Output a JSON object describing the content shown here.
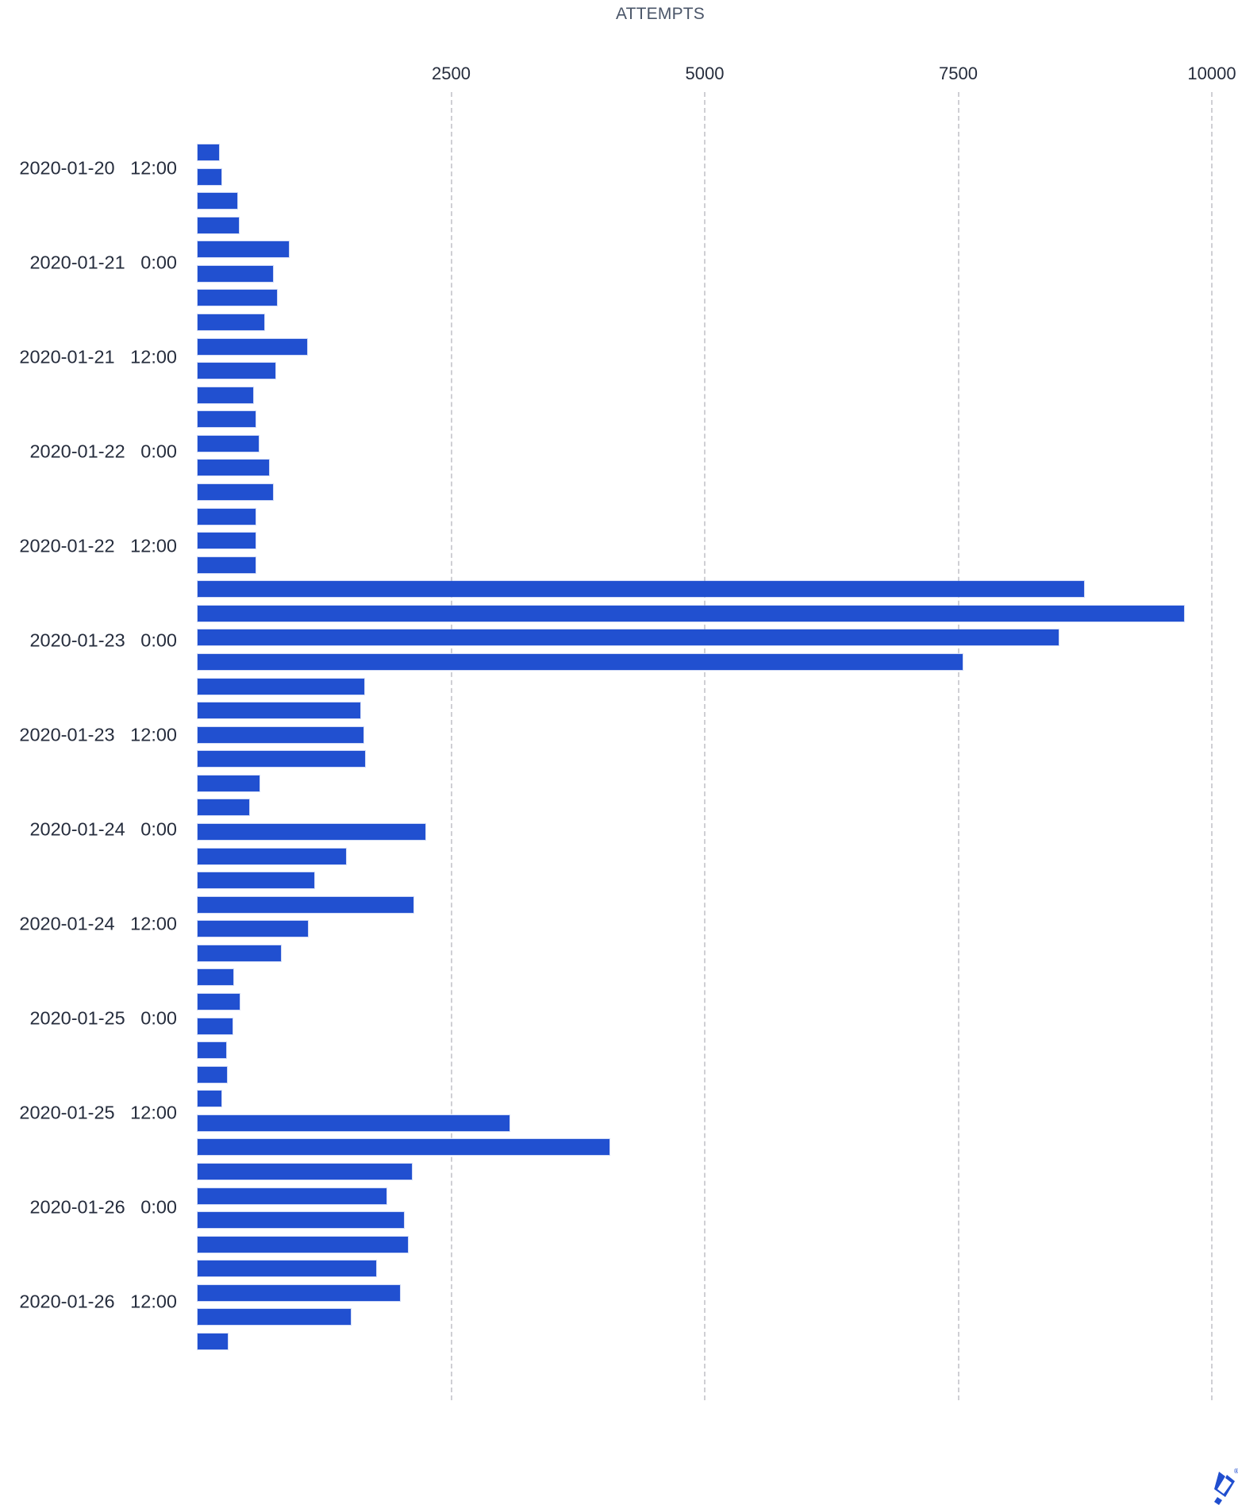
{
  "chart_data": {
    "type": "bar",
    "orientation": "horizontal",
    "title": "ATTEMPTS",
    "xlabel": "ATTEMPTS",
    "ylabel": "",
    "xlim": [
      0,
      10000
    ],
    "x_ticks": [
      2500,
      5000,
      7500,
      10000
    ],
    "x_tick_labels": [
      "2500",
      "5000",
      "7500",
      "10000"
    ],
    "grid": "vertical dashed",
    "y_tick_labels": [
      "2020-01-20   12:00",
      "2020-01-21   0:00",
      "2020-01-21   12:00",
      "2020-01-22   0:00",
      "2020-01-22   12:00",
      "2020-01-23   0:00",
      "2020-01-23   12:00",
      "2020-01-24   0:00",
      "2020-01-24   12:00",
      "2020-01-25   0:00",
      "2020-01-25   12:00",
      "2020-01-26   0:00",
      "2020-01-26   12:00"
    ],
    "bar_interval": "approx. 3 hours per bar",
    "values": [
      210,
      235,
      390,
      410,
      900,
      745,
      785,
      660,
      1080,
      770,
      550,
      575,
      600,
      705,
      745,
      575,
      575,
      575,
      8740,
      9730,
      8490,
      7545,
      1640,
      1605,
      1635,
      1650,
      610,
      510,
      2245,
      1465,
      1150,
      2130,
      1090,
      820,
      350,
      415,
      345,
      280,
      290,
      235,
      3075,
      4060,
      2115,
      1860,
      2035,
      2075,
      1760,
      1995,
      1510,
      295
    ],
    "bar_color": "#2150d0"
  },
  "colors": {
    "bar": "#2150d0",
    "text": "#262d3d",
    "title": "#4a5568",
    "grid": "#cfcfd4",
    "logo": "#204ecf"
  },
  "logo": {
    "name": "brand-logo",
    "mark": "®"
  }
}
